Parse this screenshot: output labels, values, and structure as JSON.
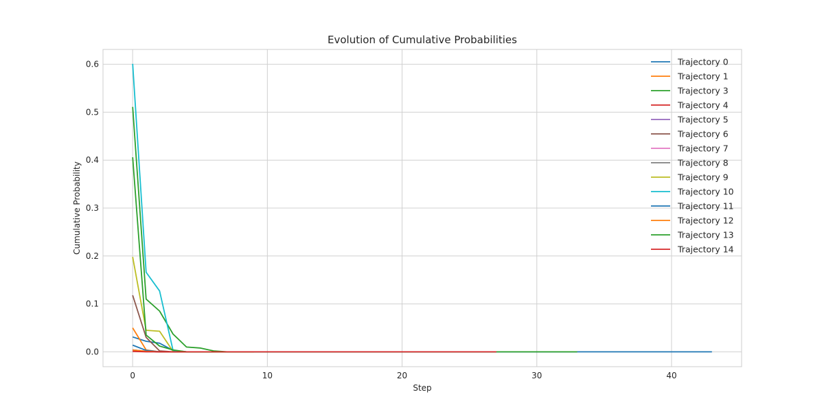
{
  "chart_data": {
    "type": "line",
    "title": "Evolution of Cumulative Probabilities",
    "xlabel": "Step",
    "ylabel": "Cumulative Probability",
    "xlim": [
      -2.2,
      45.2
    ],
    "ylim": [
      -0.031,
      0.631
    ],
    "xticks": [
      0,
      10,
      20,
      30,
      40
    ],
    "yticks": [
      0.0,
      0.1,
      0.2,
      0.3,
      0.4,
      0.5,
      0.6
    ],
    "ytick_labels": [
      "0.0",
      "0.1",
      "0.2",
      "0.3",
      "0.4",
      "0.5",
      "0.6"
    ],
    "grid": true,
    "legend_position": "top-right",
    "series": [
      {
        "name": "Trajectory 0",
        "color": "#1f77b4",
        "x": [
          0,
          1,
          2,
          3,
          4,
          43
        ],
        "y": [
          0.031,
          0.022,
          0.018,
          0.003,
          0.0,
          0.0
        ]
      },
      {
        "name": "Trajectory 1",
        "color": "#ff7f0e",
        "x": [
          0,
          1,
          2,
          9
        ],
        "y": [
          0.05,
          0.004,
          0.0,
          0.0
        ]
      },
      {
        "name": "Trajectory 3",
        "color": "#2ca02c",
        "x": [
          0,
          1,
          2,
          3,
          4,
          5,
          6,
          7,
          33
        ],
        "y": [
          0.511,
          0.11,
          0.085,
          0.037,
          0.01,
          0.008,
          0.002,
          0.0,
          0.0
        ]
      },
      {
        "name": "Trajectory 4",
        "color": "#d62728",
        "x": [
          0,
          1,
          2,
          3,
          9
        ],
        "y": [
          0.002,
          0.001,
          0.0,
          0.0,
          0.0
        ]
      },
      {
        "name": "Trajectory 5",
        "color": "#9467bd",
        "x": [
          0,
          1,
          2,
          8
        ],
        "y": [
          0.004,
          0.001,
          0.0,
          0.0
        ]
      },
      {
        "name": "Trajectory 6",
        "color": "#8c564b",
        "x": [
          0,
          1,
          2,
          3,
          8
        ],
        "y": [
          0.118,
          0.03,
          0.002,
          0.0,
          0.0
        ]
      },
      {
        "name": "Trajectory 7",
        "color": "#e377c2",
        "x": [
          0,
          1,
          2,
          8
        ],
        "y": [
          0.003,
          0.001,
          0.0,
          0.0
        ]
      },
      {
        "name": "Trajectory 8",
        "color": "#7f7f7f",
        "x": [
          0,
          1,
          2,
          8
        ],
        "y": [
          0.004,
          0.001,
          0.0,
          0.0
        ]
      },
      {
        "name": "Trajectory 9",
        "color": "#bcbd22",
        "x": [
          0,
          1,
          2,
          3,
          4,
          9
        ],
        "y": [
          0.198,
          0.045,
          0.043,
          0.001,
          0.0,
          0.0
        ]
      },
      {
        "name": "Trajectory 10",
        "color": "#17becf",
        "x": [
          0,
          1,
          2,
          3,
          4,
          9
        ],
        "y": [
          0.601,
          0.166,
          0.127,
          0.003,
          0.0,
          0.0
        ]
      },
      {
        "name": "Trajectory 11",
        "color": "#1f77b4",
        "x": [
          0,
          1,
          2,
          3,
          9
        ],
        "y": [
          0.014,
          0.003,
          0.0,
          0.0,
          0.0
        ]
      },
      {
        "name": "Trajectory 12",
        "color": "#ff7f0e",
        "x": [
          0,
          1,
          2,
          9
        ],
        "y": [
          0.004,
          0.001,
          0.0,
          0.0
        ]
      },
      {
        "name": "Trajectory 13",
        "color": "#2ca02c",
        "x": [
          0,
          1,
          2,
          3,
          4,
          9
        ],
        "y": [
          0.406,
          0.035,
          0.012,
          0.004,
          0.0,
          0.0
        ]
      },
      {
        "name": "Trajectory 14",
        "color": "#d62728",
        "x": [
          0,
          1,
          2,
          27
        ],
        "y": [
          0.001,
          0.0,
          0.0,
          0.0
        ]
      }
    ]
  }
}
